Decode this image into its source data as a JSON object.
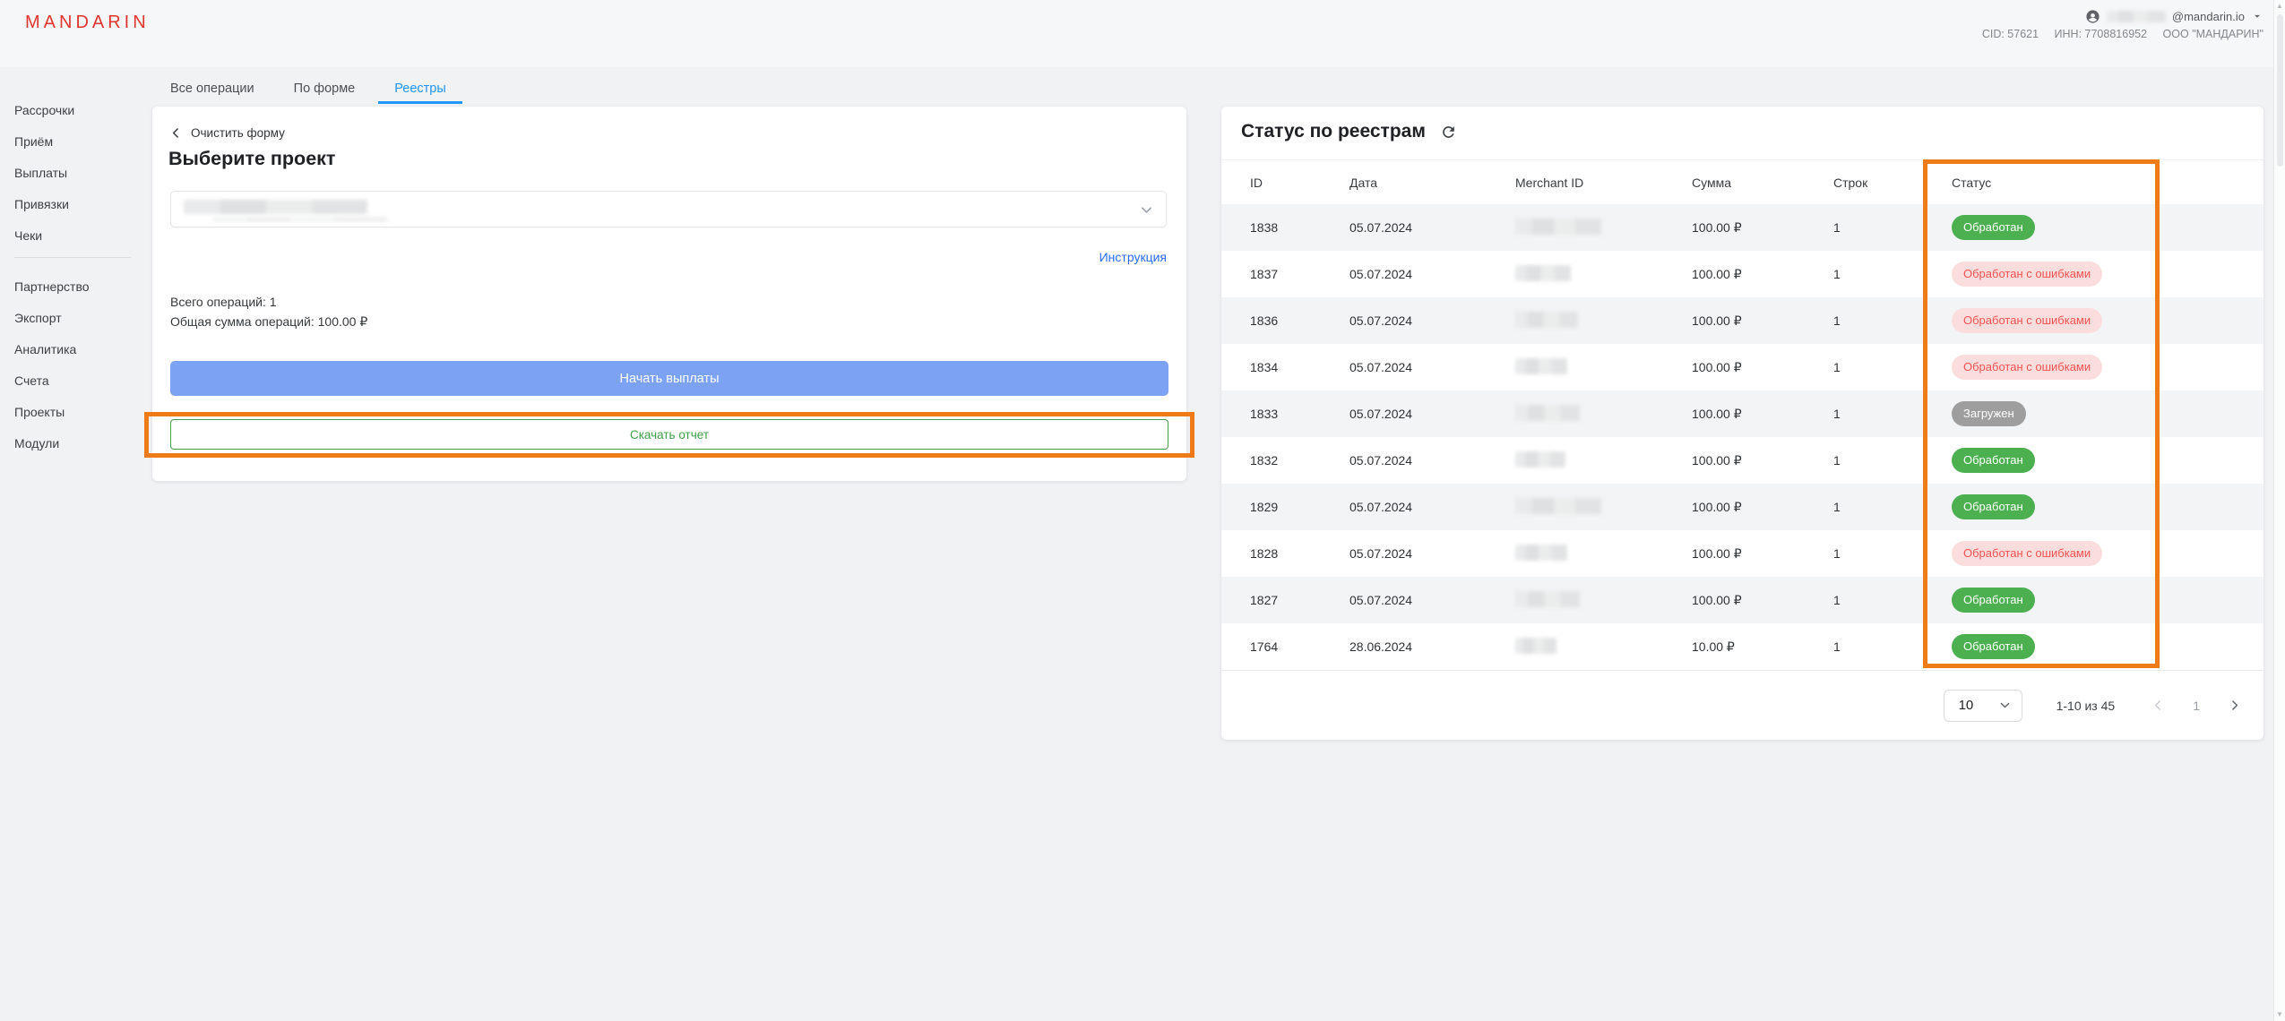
{
  "topbar": {
    "logo": "MANDARIN",
    "email_suffix": "@mandarin.io",
    "cid": "CID: 57621",
    "inn": "ИНН: 7708816952",
    "org": "ООО \"МАНДАРИН\""
  },
  "sidebar": {
    "groups": [
      {
        "items": [
          {
            "key": "rassrochki",
            "label": "Рассрочки"
          },
          {
            "key": "priyom",
            "label": "Приём"
          },
          {
            "key": "vyplaty",
            "label": "Выплаты"
          },
          {
            "key": "privyazki",
            "label": "Привязки"
          },
          {
            "key": "cheki",
            "label": "Чеки"
          }
        ]
      },
      {
        "items": [
          {
            "key": "partnerstvo",
            "label": "Партнерство"
          },
          {
            "key": "eksport",
            "label": "Экспорт"
          },
          {
            "key": "analitika",
            "label": "Аналитика"
          },
          {
            "key": "scheta",
            "label": "Счета"
          },
          {
            "key": "proekty",
            "label": "Проекты"
          },
          {
            "key": "moduli",
            "label": "Модули"
          }
        ]
      }
    ]
  },
  "tabs": [
    {
      "key": "all-operations",
      "label": "Все операции",
      "active": false
    },
    {
      "key": "by-form",
      "label": "По форме",
      "active": false
    },
    {
      "key": "registries",
      "label": "Реестры",
      "active": true
    }
  ],
  "form_panel": {
    "clear_form_label": "Очистить форму",
    "title": "Выберите проект",
    "instruction_link": "Инструкция",
    "total_ops": "Всего операций: 1",
    "total_sum": "Общая сумма операций: 100.00 ₽",
    "start_payout_button": "Начать выплаты",
    "download_report_button": "Скачать отчет"
  },
  "registry_panel": {
    "title": "Статус по реестрам",
    "table": {
      "headers": [
        "ID",
        "Дата",
        "Merchant ID",
        "Сумма",
        "Строк",
        "Статус"
      ],
      "rows": [
        {
          "id": "1838",
          "date": "05.07.2024",
          "sum": "100.00 ₽",
          "lines": "1",
          "status": "Обработан",
          "status_type": "success"
        },
        {
          "id": "1837",
          "date": "05.07.2024",
          "sum": "100.00 ₽",
          "lines": "1",
          "status": "Обработан с ошибками",
          "status_type": "error"
        },
        {
          "id": "1836",
          "date": "05.07.2024",
          "sum": "100.00 ₽",
          "lines": "1",
          "status": "Обработан с ошибками",
          "status_type": "error"
        },
        {
          "id": "1834",
          "date": "05.07.2024",
          "sum": "100.00 ₽",
          "lines": "1",
          "status": "Обработан с ошибками",
          "status_type": "error"
        },
        {
          "id": "1833",
          "date": "05.07.2024",
          "sum": "100.00 ₽",
          "lines": "1",
          "status": "Загружен",
          "status_type": "loaded"
        },
        {
          "id": "1832",
          "date": "05.07.2024",
          "sum": "100.00 ₽",
          "lines": "1",
          "status": "Обработан",
          "status_type": "success"
        },
        {
          "id": "1829",
          "date": "05.07.2024",
          "sum": "100.00 ₽",
          "lines": "1",
          "status": "Обработан",
          "status_type": "success"
        },
        {
          "id": "1828",
          "date": "05.07.2024",
          "sum": "100.00 ₽",
          "lines": "1",
          "status": "Обработан с ошибками",
          "status_type": "error"
        },
        {
          "id": "1827",
          "date": "05.07.2024",
          "sum": "100.00 ₽",
          "lines": "1",
          "status": "Обработан",
          "status_type": "success"
        },
        {
          "id": "1764",
          "date": "28.06.2024",
          "sum": "10.00 ₽",
          "lines": "1",
          "status": "Обработан",
          "status_type": "success"
        }
      ]
    },
    "pagination": {
      "page_size": "10",
      "range_label": "1-10 из 45",
      "page": "1"
    }
  },
  "icons": {
    "person": "account-circle",
    "caret_down": "▾",
    "chevron_left": "‹",
    "chevron_down": "⌄",
    "refresh": "⟳",
    "prev_page": "‹",
    "next_page": "›",
    "scroll_up": "▴",
    "scroll_down": "▾"
  },
  "colors": {
    "brand_red": "#e0362f",
    "accent_blue": "#2196f3",
    "link_blue": "#2b6cf5",
    "button_blue": "#7ca3f3",
    "success_green": "#4caf50",
    "error_text": "#ef5350",
    "error_bg": "#fbdddd",
    "loaded_gray": "#9e9e9e",
    "annotation_orange": "#ee7b17"
  }
}
